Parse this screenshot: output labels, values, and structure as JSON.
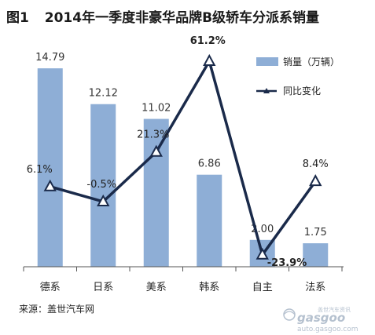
{
  "chart_data": {
    "type": "bar",
    "title_prefix": "图1",
    "title": "2014年一季度非豪华品牌B级轿车分派系销量",
    "categories": [
      "德系",
      "日系",
      "美系",
      "韩系",
      "自主",
      "法系"
    ],
    "series": [
      {
        "name": "销量（万辆）",
        "type": "bar",
        "values": [
          14.79,
          12.12,
          11.02,
          6.86,
          2.0,
          1.75
        ],
        "labels": [
          "14.79",
          "12.12",
          "11.02",
          "6.86",
          "2.00",
          "1.75"
        ],
        "color": "#8eaed6"
      },
      {
        "name": "同比变化",
        "type": "line",
        "values": [
          6.1,
          -0.5,
          21.3,
          61.2,
          -23.9,
          8.4
        ],
        "labels": [
          "6.1%",
          "-0.5%",
          "21.3%",
          "61.2%",
          "-23.9%",
          "8.4%"
        ],
        "color": "#1a2a4a"
      }
    ],
    "ylim_bar": [
      0,
      16
    ],
    "ylim_line": [
      -30,
      70
    ],
    "legend_position": "top-right",
    "grid": false,
    "highlight_colors": {
      "max": "#1a1a1a",
      "min": "#c0392b"
    }
  },
  "source": "来源：盖世汽车网",
  "watermark": {
    "brand_cn": "盖世汽车资讯",
    "brand_en": "gasgoo",
    "url": "auto.gasgoo.com"
  }
}
